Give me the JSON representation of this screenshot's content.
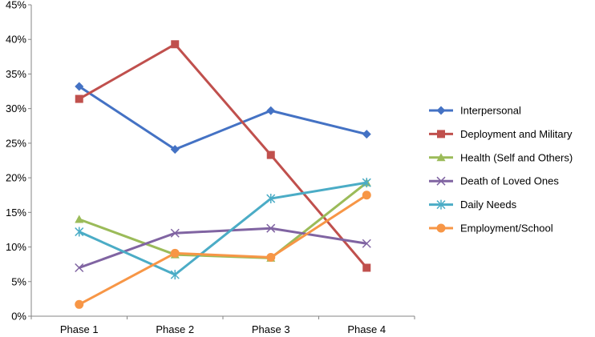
{
  "chart_data": {
    "type": "line",
    "categories": [
      "Phase 1",
      "Phase 2",
      "Phase 3",
      "Phase 4"
    ],
    "y_ticks": [
      "0%",
      "5%",
      "10%",
      "15%",
      "20%",
      "25%",
      "30%",
      "35%",
      "40%",
      "45%"
    ],
    "ylim": [
      0,
      45
    ],
    "y_unit": "%",
    "grid": false,
    "legend_position": "right",
    "series": [
      {
        "name": "Interpersonal",
        "values": [
          33.2,
          24.1,
          29.7,
          26.3
        ],
        "color": "#4472C4",
        "marker": "diamond"
      },
      {
        "name": "Deployment and Military",
        "values": [
          31.4,
          39.3,
          23.3,
          7.0
        ],
        "color": "#C0504D",
        "marker": "square"
      },
      {
        "name": "Health (Self and Others)",
        "values": [
          14.0,
          8.9,
          8.4,
          19.3
        ],
        "color": "#9BBB59",
        "marker": "triangle"
      },
      {
        "name": "Death of Loved Ones",
        "values": [
          7.0,
          12.0,
          12.7,
          10.5
        ],
        "color": "#8064A2",
        "marker": "x"
      },
      {
        "name": "Daily Needs",
        "values": [
          12.2,
          6.0,
          17.0,
          19.3
        ],
        "color": "#4BACC6",
        "marker": "star"
      },
      {
        "name": "Employment/School",
        "values": [
          1.7,
          9.1,
          8.5,
          17.5
        ],
        "color": "#F79646",
        "marker": "circle"
      }
    ]
  }
}
